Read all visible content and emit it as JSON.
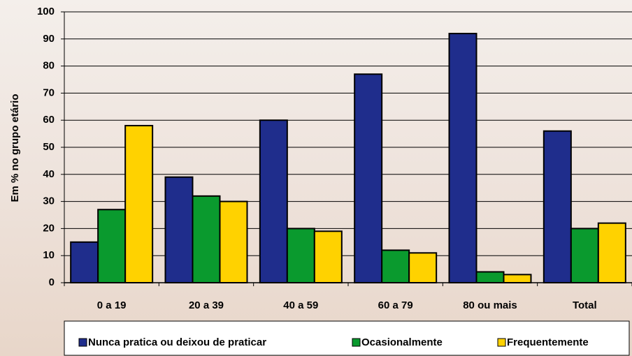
{
  "chart_data": {
    "type": "bar",
    "y_label": "Em % no grupo etário",
    "categories": [
      "0 a 19",
      "20 a 39",
      "40 a 59",
      "60 a 79",
      "80 ou mais",
      "Total"
    ],
    "series": [
      {
        "name": "Nunca pratica ou deixou de praticar",
        "color": "#1f2d8c",
        "values": [
          15,
          39,
          60,
          77,
          92,
          56
        ]
      },
      {
        "name": "Ocasionalmente",
        "color": "#0a9a2e",
        "values": [
          27,
          32,
          20,
          12,
          4,
          20
        ]
      },
      {
        "name": "Frequentemente",
        "color": "#ffd200",
        "values": [
          58,
          30,
          19,
          11,
          3,
          22
        ]
      }
    ],
    "ylim": [
      0,
      100
    ],
    "yticks": [
      0,
      10,
      20,
      30,
      40,
      50,
      60,
      70,
      80,
      90,
      100
    ],
    "grid": true
  }
}
